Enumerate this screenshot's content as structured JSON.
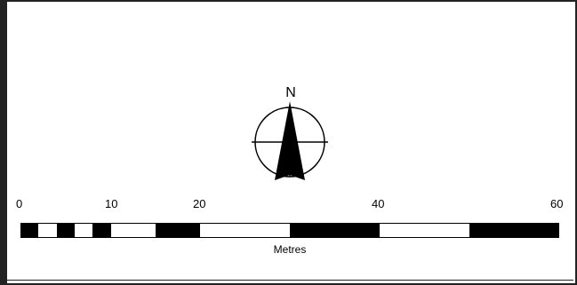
{
  "map": {
    "north_arrow": {
      "label": "N",
      "icon": "north-arrow-icon"
    },
    "scale_bar": {
      "tick_labels": [
        "0",
        "10",
        "20",
        "40",
        "60"
      ],
      "unit_label": "Metres",
      "segment_colors": [
        "#000000",
        "#ffffff"
      ]
    }
  }
}
